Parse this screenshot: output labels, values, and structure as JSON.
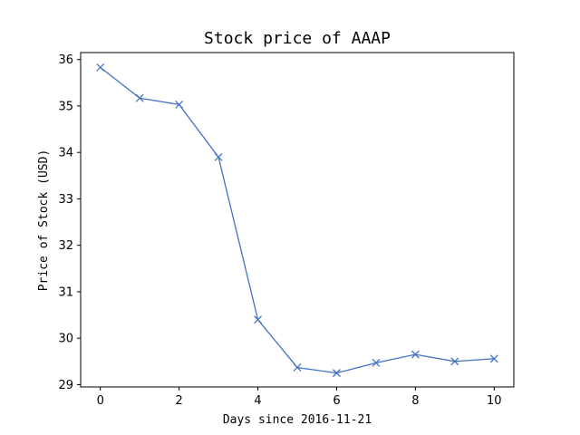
{
  "chart_data": {
    "type": "line",
    "title": "Stock price of AAAP",
    "xlabel": "Days since 2016-11-21",
    "ylabel": "Price of Stock (USD)",
    "xlim": [
      -0.5,
      10.5
    ],
    "ylim": [
      28.95,
      36.15
    ],
    "xticks": [
      0,
      2,
      4,
      6,
      8,
      10
    ],
    "yticks": [
      29,
      30,
      31,
      32,
      33,
      34,
      35,
      36
    ],
    "grid": false,
    "legend": false,
    "marker": "x",
    "color": "#4472c4",
    "series": [
      {
        "x": [
          0,
          1,
          2,
          3,
          4,
          5,
          6,
          7,
          8,
          9,
          10
        ],
        "values": [
          35.83,
          35.17,
          35.03,
          33.9,
          30.4,
          29.37,
          29.25,
          29.47,
          29.65,
          29.5,
          29.56
        ]
      }
    ]
  }
}
